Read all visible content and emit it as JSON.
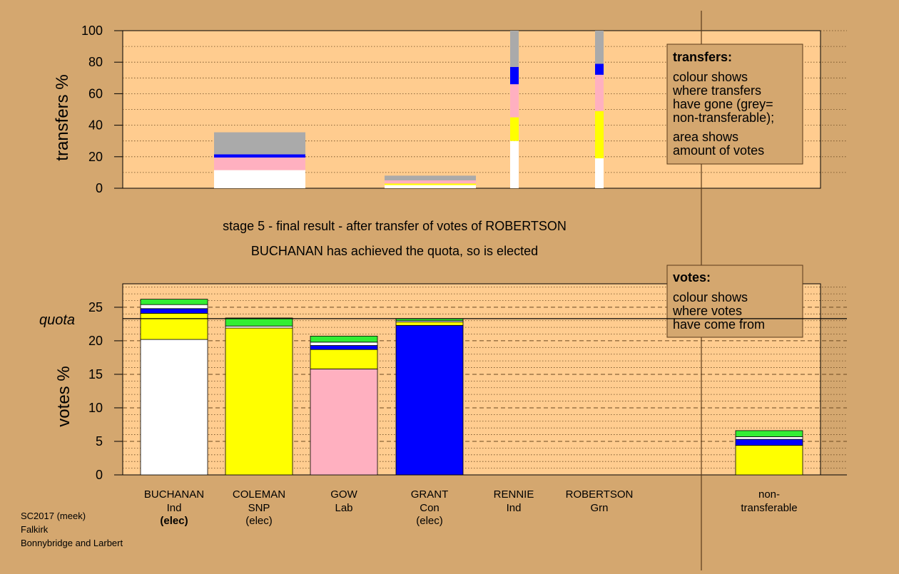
{
  "meta": {
    "credits": [
      "SC2017 (meek)",
      "Falkirk",
      "Bonnybridge and Larbert"
    ]
  },
  "colors": {
    "page_bg": "#D4A76F",
    "plot_bg": "#FFCC8F",
    "Ind": "#FFFFFF",
    "SNP": "#FFFF00",
    "Lab": "#FFB0C0",
    "Con": "#0000FF",
    "Grn": "#33EE33",
    "nontransferable": "#AAAAAA",
    "quota_line": "#000000"
  },
  "labels": {
    "stage_line1": "stage 5 - final result - after transfer of votes of ROBERTSON",
    "stage_line2": "BUCHANAN has achieved the quota, so is elected",
    "quota": "quota"
  },
  "legend_transfers": {
    "title": "transfers:",
    "lines": [
      "colour shows",
      "where transfers",
      "have gone (grey=",
      "non-transferable);"
    ],
    "lines2": [
      "area shows",
      "amount of votes"
    ]
  },
  "legend_votes": {
    "title": "votes:",
    "lines": [
      "colour shows",
      "where votes",
      "have come from"
    ]
  },
  "chart_data": [
    {
      "type": "bar",
      "name": "transfers",
      "ylabel": "transfers %",
      "ylim": [
        0,
        100
      ],
      "yticks": [
        0,
        20,
        40,
        60,
        80,
        100
      ],
      "bars": [
        {
          "candidate": "BUCHANAN",
          "width": "wide",
          "segments": [
            {
              "c": "Ind",
              "v": 11.5
            },
            {
              "c": "Lab",
              "v": 8
            },
            {
              "c": "Con",
              "v": 2
            },
            {
              "c": "nontransferable",
              "v": 14
            }
          ]
        },
        {
          "candidate": "GRANT",
          "width": "wide",
          "segments": [
            {
              "c": "Ind",
              "v": 2
            },
            {
              "c": "SNP",
              "v": 1
            },
            {
              "c": "Lab",
              "v": 2
            },
            {
              "c": "nontransferable",
              "v": 3
            }
          ]
        },
        {
          "candidate": "RENNIE",
          "width": "thin",
          "segments": [
            {
              "c": "Ind",
              "v": 30
            },
            {
              "c": "SNP",
              "v": 15
            },
            {
              "c": "Lab",
              "v": 21
            },
            {
              "c": "Con",
              "v": 11
            },
            {
              "c": "nontransferable",
              "v": 23
            }
          ]
        },
        {
          "candidate": "ROBERTSON",
          "width": "thin",
          "segments": [
            {
              "c": "Ind",
              "v": 19
            },
            {
              "c": "SNP",
              "v": 30
            },
            {
              "c": "Lab",
              "v": 23
            },
            {
              "c": "Con",
              "v": 7
            },
            {
              "c": "nontransferable",
              "v": 21
            }
          ]
        }
      ]
    },
    {
      "type": "bar",
      "name": "votes",
      "ylabel": "votes %",
      "ylim": [
        0,
        28.5
      ],
      "yticks": [
        0,
        5,
        10,
        15,
        20,
        25
      ],
      "quota": 23.3,
      "bars": [
        {
          "name": "BUCHANAN",
          "party": "Ind",
          "status": "(elec)",
          "status_bold": true,
          "segments": [
            {
              "c": "Ind",
              "v": 20.2
            },
            {
              "c": "SNP",
              "v": 3.9
            },
            {
              "c": "Con",
              "v": 0.7
            },
            {
              "c": "Ind",
              "v": 0.6
            },
            {
              "c": "Grn",
              "v": 0.8
            }
          ]
        },
        {
          "name": "COLEMAN",
          "party": "SNP",
          "status": "(elec)",
          "status_bold": false,
          "segments": [
            {
              "c": "SNP",
              "v": 21.9
            },
            {
              "c": "Ind",
              "v": 0.3
            },
            {
              "c": "Grn",
              "v": 1.2
            }
          ]
        },
        {
          "name": "GOW",
          "party": "Lab",
          "status": "",
          "status_bold": false,
          "segments": [
            {
              "c": "Lab",
              "v": 15.8
            },
            {
              "c": "SNP",
              "v": 2.9
            },
            {
              "c": "Con",
              "v": 0.6
            },
            {
              "c": "Ind",
              "v": 0.5
            },
            {
              "c": "Grn",
              "v": 0.9
            }
          ]
        },
        {
          "name": "GRANT",
          "party": "Con",
          "status": "(elec)",
          "status_bold": false,
          "segments": [
            {
              "c": "Con",
              "v": 22.3
            },
            {
              "c": "SNP",
              "v": 0.5
            },
            {
              "c": "Ind",
              "v": 0.2
            },
            {
              "c": "Grn",
              "v": 0.3
            }
          ]
        },
        {
          "name": "RENNIE",
          "party": "Ind",
          "status": "",
          "status_bold": false,
          "segments": []
        },
        {
          "name": "ROBERTSON",
          "party": "Grn",
          "status": "",
          "status_bold": false,
          "segments": []
        },
        {
          "name": "non-",
          "party": "transferable",
          "status": "",
          "status_bold": false,
          "nontransferable": true,
          "segments": [
            {
              "c": "SNP",
              "v": 4.4
            },
            {
              "c": "Con",
              "v": 0.9
            },
            {
              "c": "Ind",
              "v": 0.4
            },
            {
              "c": "Grn",
              "v": 0.9
            }
          ]
        }
      ]
    }
  ]
}
